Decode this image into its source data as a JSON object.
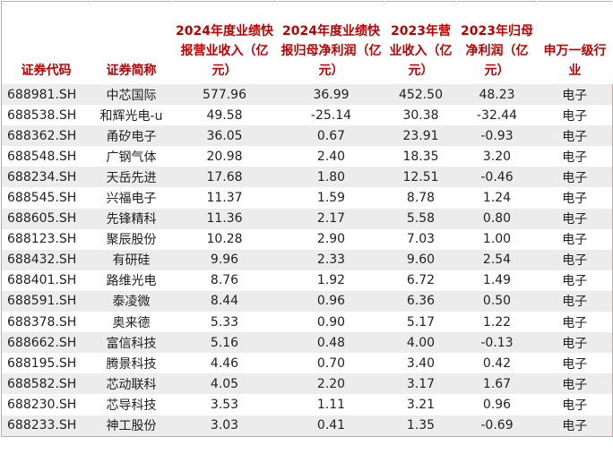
{
  "table": {
    "header": [
      "证券代码",
      "证券简称",
      "2024年度业绩快报营业收入（亿元）",
      "2024年度业绩快报归母净利润（亿元）",
      "2023年营业收入（亿元）",
      "2023年归母净利润（亿元）",
      "申万一级行业"
    ],
    "rows": [
      [
        "688981.SH",
        "中芯国际",
        "577.96",
        "36.99",
        "452.50",
        "48.23",
        "电子"
      ],
      [
        "688538.SH",
        "和辉光电-u",
        "49.58",
        "-25.14",
        "30.38",
        "-32.44",
        "电子"
      ],
      [
        "688362.SH",
        "甬矽电子",
        "36.05",
        "0.67",
        "23.91",
        "-0.93",
        "电子"
      ],
      [
        "688548.SH",
        "广钢气体",
        "20.98",
        "2.40",
        "18.35",
        "3.20",
        "电子"
      ],
      [
        "688234.SH",
        "天岳先进",
        "17.68",
        "1.80",
        "12.51",
        "-0.46",
        "电子"
      ],
      [
        "688545.SH",
        "兴福电子",
        "11.37",
        "1.59",
        "8.78",
        "1.24",
        "电子"
      ],
      [
        "688605.SH",
        "先锋精科",
        "11.36",
        "2.17",
        "5.58",
        "0.80",
        "电子"
      ],
      [
        "688123.SH",
        "聚辰股份",
        "10.28",
        "2.90",
        "7.03",
        "1.00",
        "电子"
      ],
      [
        "688432.SH",
        "有研硅",
        "9.96",
        "2.33",
        "9.60",
        "2.54",
        "电子"
      ],
      [
        "688401.SH",
        "路维光电",
        "8.76",
        "1.92",
        "6.72",
        "1.49",
        "电子"
      ],
      [
        "688591.SH",
        "泰凌微",
        "8.44",
        "0.96",
        "6.36",
        "0.50",
        "电子"
      ],
      [
        "688378.SH",
        "奥来德",
        "5.33",
        "0.90",
        "5.17",
        "1.22",
        "电子"
      ],
      [
        "688662.SH",
        "富信科技",
        "5.16",
        "0.48",
        "4.00",
        "-0.13",
        "电子"
      ],
      [
        "688195.SH",
        "腾景科技",
        "4.46",
        "0.70",
        "3.40",
        "0.42",
        "电子"
      ],
      [
        "688582.SH",
        "芯动联科",
        "4.05",
        "2.20",
        "3.17",
        "1.67",
        "电子"
      ],
      [
        "688230.SH",
        "芯导科技",
        "3.53",
        "1.11",
        "3.21",
        "0.96",
        "电子"
      ],
      [
        "688233.SH",
        "神工股份",
        "3.03",
        "0.41",
        "1.35",
        "-0.69",
        "电子"
      ]
    ]
  }
}
